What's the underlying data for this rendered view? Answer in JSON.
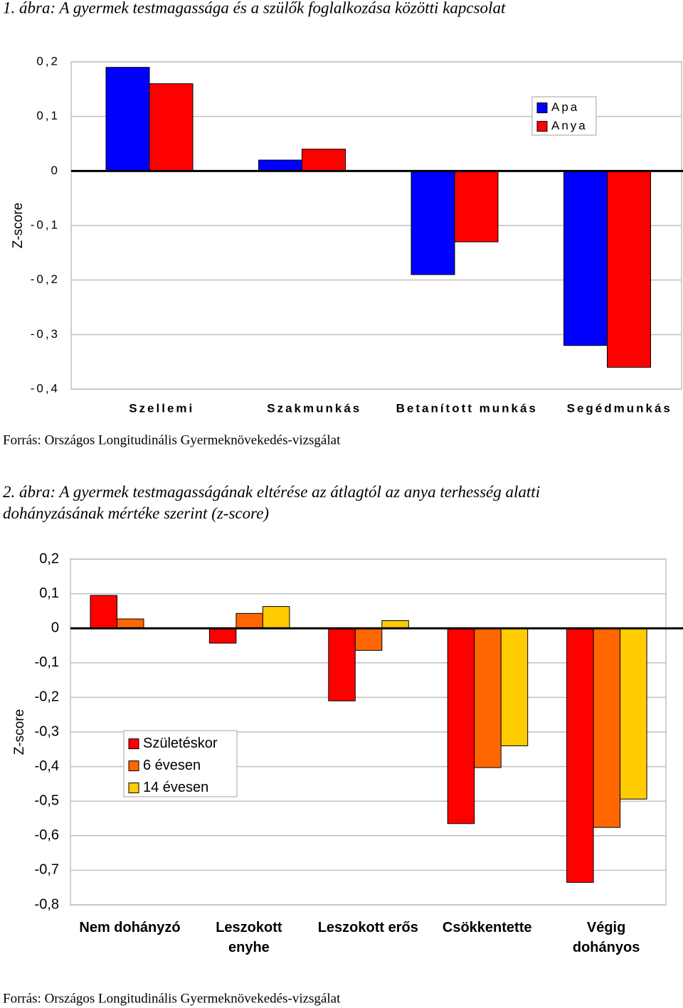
{
  "chart_data": [
    {
      "type": "bar",
      "title": "1. ábra: A gyermek testmagassága és a szülők foglalkozása közötti kapcsolat",
      "y_label": "Z-score",
      "categories": [
        "Szellemi",
        "Szakmunkás",
        "Betanított munkás",
        "Segédmunkás"
      ],
      "series": [
        {
          "name": "Apa",
          "color": "#0000ff",
          "values": [
            0.19,
            0.02,
            -0.19,
            -0.32
          ]
        },
        {
          "name": "Anya",
          "color": "#ff0000",
          "values": [
            0.16,
            0.04,
            -0.13,
            -0.36
          ]
        }
      ],
      "ylim": [
        -0.4,
        0.2
      ],
      "yticks": [
        {
          "value": 0.2,
          "label": "0,2"
        },
        {
          "value": 0.1,
          "label": "0,1"
        },
        0,
        {
          "value": -0.1,
          "label": "-0,1"
        },
        {
          "value": -0.2,
          "label": "-0,2"
        },
        {
          "value": -0.3,
          "label": "-0,3"
        },
        {
          "value": -0.4,
          "label": "-0,4"
        }
      ],
      "grid": true,
      "legend": "top-right",
      "source": "Forrás: Országos Longitudinális Gyermeknövekedés-vizsgálat"
    },
    {
      "type": "bar",
      "title": "2. ábra: A gyermek testmagasságának eltérése az átlagtól az anya terhesség alatti dohányzásának mértéke szerint (z-score)",
      "y_label": "Z-score",
      "categories": [
        "Nem dohányzó",
        "Leszokott\nenyhe",
        "Leszokott erős",
        "Csökkentette",
        "Végig\ndohányos"
      ],
      "series": [
        {
          "name": "Születéskor",
          "color": "#ff0000",
          "values": [
            0.095,
            -0.043,
            -0.21,
            -0.565,
            -0.735
          ]
        },
        {
          "name": "6 évesen",
          "color": "#ff6600",
          "values": [
            0.027,
            0.043,
            -0.064,
            -0.403,
            -0.576
          ]
        },
        {
          "name": "14 évesen",
          "color": "#ffcc00",
          "values": [
            0,
            0.063,
            0.022,
            -0.34,
            -0.494
          ]
        }
      ],
      "ylim": [
        -0.8,
        0.2
      ],
      "yticks": [
        {
          "value": 0.2,
          "label": "0,2"
        },
        {
          "value": 0.1,
          "label": "0,1"
        },
        0,
        {
          "value": -0.1,
          "label": "-0,1"
        },
        {
          "value": -0.2,
          "label": "-0,2"
        },
        {
          "value": -0.3,
          "label": "-0,3"
        },
        {
          "value": -0.4,
          "label": "-0,4"
        },
        {
          "value": -0.5,
          "label": "-0,5"
        },
        {
          "value": -0.6,
          "label": "-0,6"
        },
        {
          "value": -0.7,
          "label": "-0,7"
        },
        {
          "value": -0.8,
          "label": "-0,8"
        }
      ],
      "grid": true,
      "legend": "center-left",
      "source": "Forrás: Országos Longitudinális Gyermeknövekedés-vizsgálat"
    }
  ]
}
